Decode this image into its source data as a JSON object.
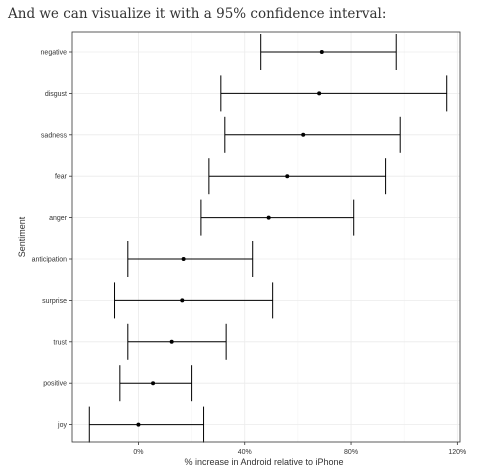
{
  "intro_text": "And we can visualize it with a 95% confidence interval:",
  "chart_data": {
    "type": "errorbar",
    "title": "",
    "xlabel": "% increase in Android relative to iPhone",
    "ylabel": "Sentiment",
    "xlim": [
      -0.25,
      1.21
    ],
    "xticks": [
      0,
      0.4,
      0.8,
      1.2
    ],
    "xtick_labels": [
      "0%",
      "40%",
      "80%",
      "120%"
    ],
    "grid": true,
    "categories": [
      "negative",
      "disgust",
      "sadness",
      "fear",
      "anger",
      "anticipation",
      "surprise",
      "trust",
      "positive",
      "joy"
    ],
    "estimate": [
      0.69,
      0.68,
      0.62,
      0.56,
      0.49,
      0.17,
      0.165,
      0.125,
      0.055,
      0.0
    ],
    "lower": [
      0.46,
      0.31,
      0.325,
      0.265,
      0.235,
      -0.04,
      -0.09,
      -0.04,
      -0.07,
      -0.185
    ],
    "upper": [
      0.97,
      1.16,
      0.985,
      0.93,
      0.81,
      0.43,
      0.505,
      0.33,
      0.2,
      0.245
    ],
    "colors": {
      "mark": "#000000",
      "grid": "#ebebeb",
      "text": "#333333",
      "axis": "#333333"
    }
  }
}
